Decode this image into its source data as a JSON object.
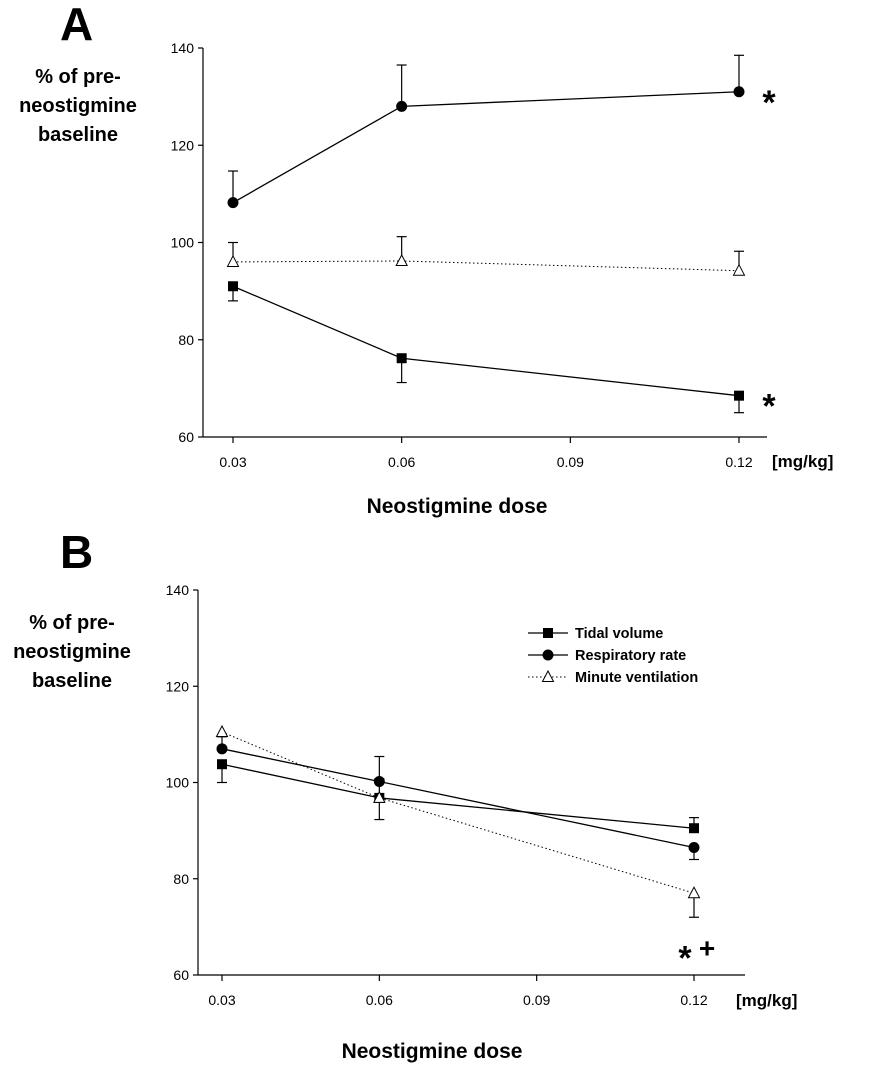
{
  "chart_data": [
    {
      "panel": "A",
      "type": "line",
      "ylabel": [
        "% of pre-",
        "neostigmine",
        "baseline"
      ],
      "xlabel": "Neostigmine dose",
      "x_unit": "[mg/kg]",
      "x": [
        0.03,
        0.06,
        0.12
      ],
      "xticks": [
        "0.03",
        "0.06",
        "0.09",
        "0.12"
      ],
      "yticks": [
        "60",
        "80",
        "100",
        "120",
        "140"
      ],
      "xlim": [
        0.03,
        0.12
      ],
      "ylim": [
        60,
        140
      ],
      "grid": false,
      "series": [
        {
          "key": "tidal",
          "marker": "square",
          "line": "solid",
          "values": [
            91,
            76.2,
            68.5
          ],
          "error": [
            3,
            5,
            3.5
          ],
          "error_dir": [
            -1,
            -1,
            -1
          ]
        },
        {
          "key": "resp",
          "marker": "circle",
          "line": "solid",
          "values": [
            108.2,
            128,
            131
          ],
          "error": [
            6.5,
            8.5,
            7.5
          ],
          "error_dir": [
            1,
            1,
            1
          ]
        },
        {
          "key": "minute",
          "marker": "triangle",
          "line": "dotted",
          "values": [
            96,
            96.2,
            94.2
          ],
          "error": [
            4,
            5,
            4
          ],
          "error_dir": [
            1,
            1,
            1
          ]
        }
      ],
      "annotations": [
        {
          "text": "*",
          "series": "resp",
          "at": 0.12
        },
        {
          "text": "*",
          "series": "tidal",
          "at": 0.12
        }
      ]
    },
    {
      "panel": "B",
      "type": "line",
      "ylabel": [
        "% of pre-",
        "neostigmine",
        "baseline"
      ],
      "xlabel": "Neostigmine dose",
      "x_unit": "[mg/kg]",
      "x": [
        0.03,
        0.06,
        0.12
      ],
      "xticks": [
        "0.03",
        "0.06",
        "0.09",
        "0.12"
      ],
      "yticks": [
        "60",
        "80",
        "100",
        "120",
        "140"
      ],
      "xlim": [
        0.03,
        0.12
      ],
      "ylim": [
        60,
        140
      ],
      "grid": false,
      "legend_position": "top-right",
      "legend": [
        {
          "key": "tidal",
          "label": "Tidal volume",
          "marker": "square",
          "line": "solid"
        },
        {
          "key": "resp",
          "label": "Respiratory rate",
          "marker": "circle",
          "line": "solid"
        },
        {
          "key": "minute",
          "label": "Minute ventilation",
          "marker": "triangle",
          "line": "dotted"
        }
      ],
      "series": [
        {
          "key": "tidal",
          "marker": "square",
          "line": "solid",
          "values": [
            103.8,
            96.8,
            90.5
          ],
          "error": [
            3.8,
            4.5,
            2.2
          ],
          "error_dir": [
            -1,
            -1,
            1
          ]
        },
        {
          "key": "resp",
          "marker": "circle",
          "line": "solid",
          "values": [
            107,
            100.2,
            86.5
          ],
          "error": [
            2.5,
            5.2,
            2.5
          ],
          "error_dir": [
            1,
            1,
            -1
          ]
        },
        {
          "key": "minute",
          "marker": "triangle",
          "line": "dotted",
          "values": [
            110.5,
            96.8,
            77
          ],
          "error": [
            0,
            4,
            5
          ],
          "error_dir": [
            1,
            1,
            -1
          ]
        }
      ],
      "annotations": [
        {
          "text": "*",
          "series": "minute",
          "at": 0.12
        },
        {
          "text": "+",
          "series": "minute",
          "at": 0.12
        }
      ]
    }
  ]
}
